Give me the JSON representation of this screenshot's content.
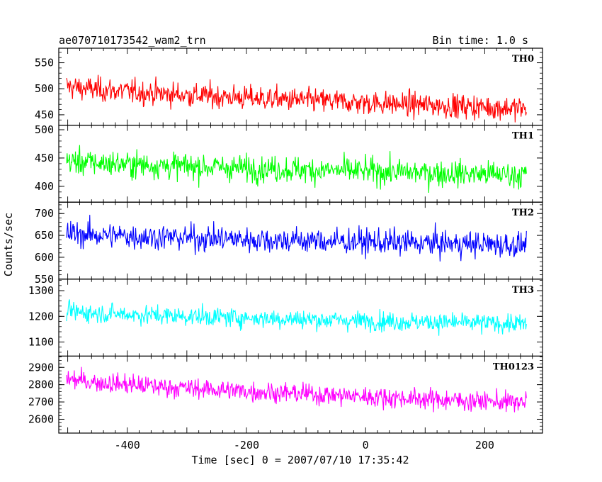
{
  "chart_data": {
    "type": "line",
    "title": "ae070710173542_wam2_trn",
    "bin_label": "Bin time: 1.0 s",
    "xlabel": "Time [sec] 0 = 2007/07/10 17:35:42",
    "ylabel": "Counts/sec",
    "xlim": [
      -515,
      297
    ],
    "x_range": [
      -502,
      270
    ],
    "x_step": 1.0,
    "x_ticks": [
      -400,
      -200,
      0,
      200
    ],
    "panels": [
      {
        "name": "TH0",
        "color": "#ff0000",
        "ylim": [
          430,
          578
        ],
        "yticks": [
          450,
          500,
          550
        ],
        "level_start": 505,
        "level_end": 462,
        "noise": 22
      },
      {
        "name": "TH1",
        "color": "#00ff00",
        "ylim": [
          372,
          508
        ],
        "yticks": [
          400,
          450,
          500
        ],
        "level_start": 445,
        "level_end": 420,
        "noise": 22
      },
      {
        "name": "TH2",
        "color": "#0000ff",
        "ylim": [
          550,
          726
        ],
        "yticks": [
          550,
          600,
          650,
          700
        ],
        "level_start": 655,
        "level_end": 628,
        "noise": 28
      },
      {
        "name": "TH3",
        "color": "#00ffff",
        "ylim": [
          1045,
          1345
        ],
        "yticks": [
          1100,
          1200,
          1300
        ],
        "level_start": 1220,
        "level_end": 1170,
        "noise": 35
      },
      {
        "name": "TH0123",
        "color": "#ff00ff",
        "ylim": [
          2520,
          2965
        ],
        "yticks": [
          2600,
          2700,
          2800,
          2900
        ],
        "level_start": 2835,
        "level_end": 2695,
        "noise": 55
      }
    ]
  }
}
